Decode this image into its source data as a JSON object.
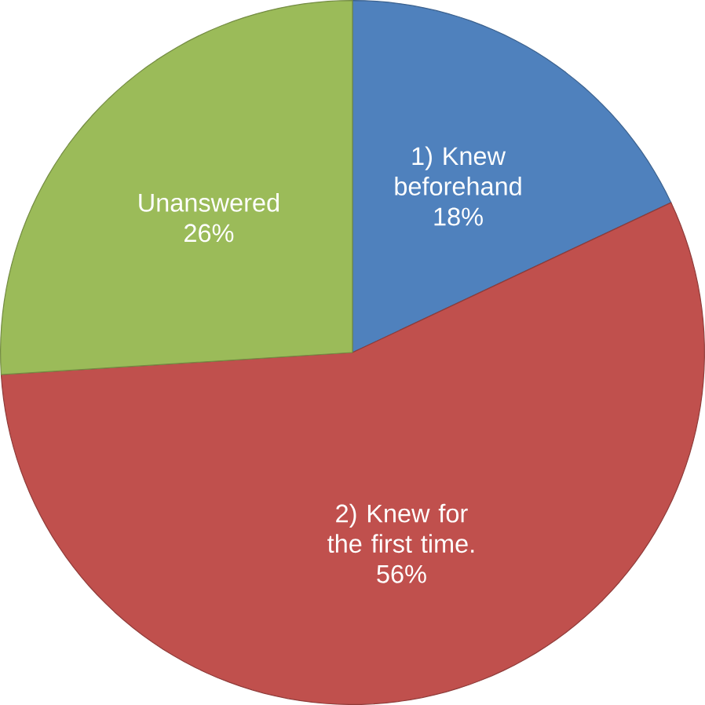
{
  "chart_data": {
    "type": "pie",
    "categories": [
      "1) Knew beforehand",
      "2) Knew for the first time.",
      "Unanswered"
    ],
    "values": [
      18,
      56,
      26
    ],
    "value_labels": [
      "18%",
      "56%",
      "26%"
    ],
    "colors": [
      "#4f81bd",
      "#c0504d",
      "#9bbb59"
    ]
  }
}
